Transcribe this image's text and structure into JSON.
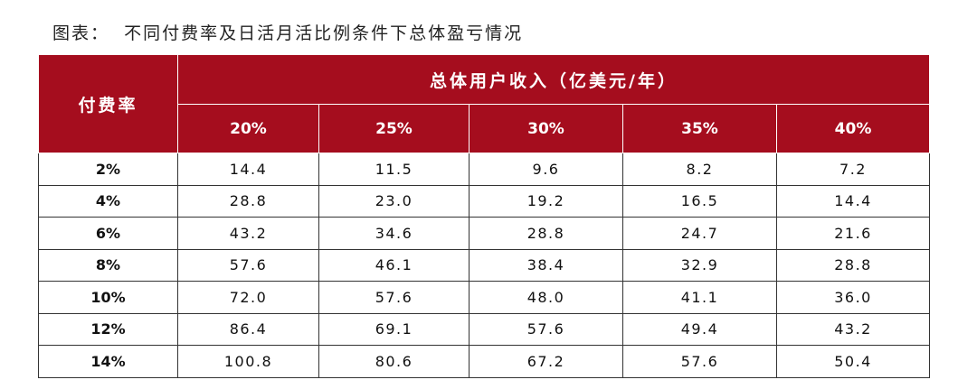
{
  "title": "图表：  不同付费率及日活月活比例条件下总体盈亏情况",
  "table": {
    "row_header": "付费率",
    "group_header": "总体用户收入（亿美元/年）",
    "columns": [
      "20%",
      "25%",
      "30%",
      "35%",
      "40%"
    ],
    "rows": [
      [
        "2%",
        "14.4",
        "11.5",
        "9.6",
        "8.2",
        "7.2"
      ],
      [
        "4%",
        "28.8",
        "23.0",
        "19.2",
        "16.5",
        "14.4"
      ],
      [
        "6%",
        "43.2",
        "34.6",
        "28.8",
        "24.7",
        "21.6"
      ],
      [
        "8%",
        "57.6",
        "46.1",
        "38.4",
        "32.9",
        "28.8"
      ],
      [
        "10%",
        "72.0",
        "57.6",
        "48.0",
        "41.1",
        "36.0"
      ],
      [
        "12%",
        "86.4",
        "69.1",
        "57.6",
        "49.4",
        "43.2"
      ],
      [
        "14%",
        "100.8",
        "80.6",
        "67.2",
        "57.6",
        "50.4"
      ]
    ]
  }
}
